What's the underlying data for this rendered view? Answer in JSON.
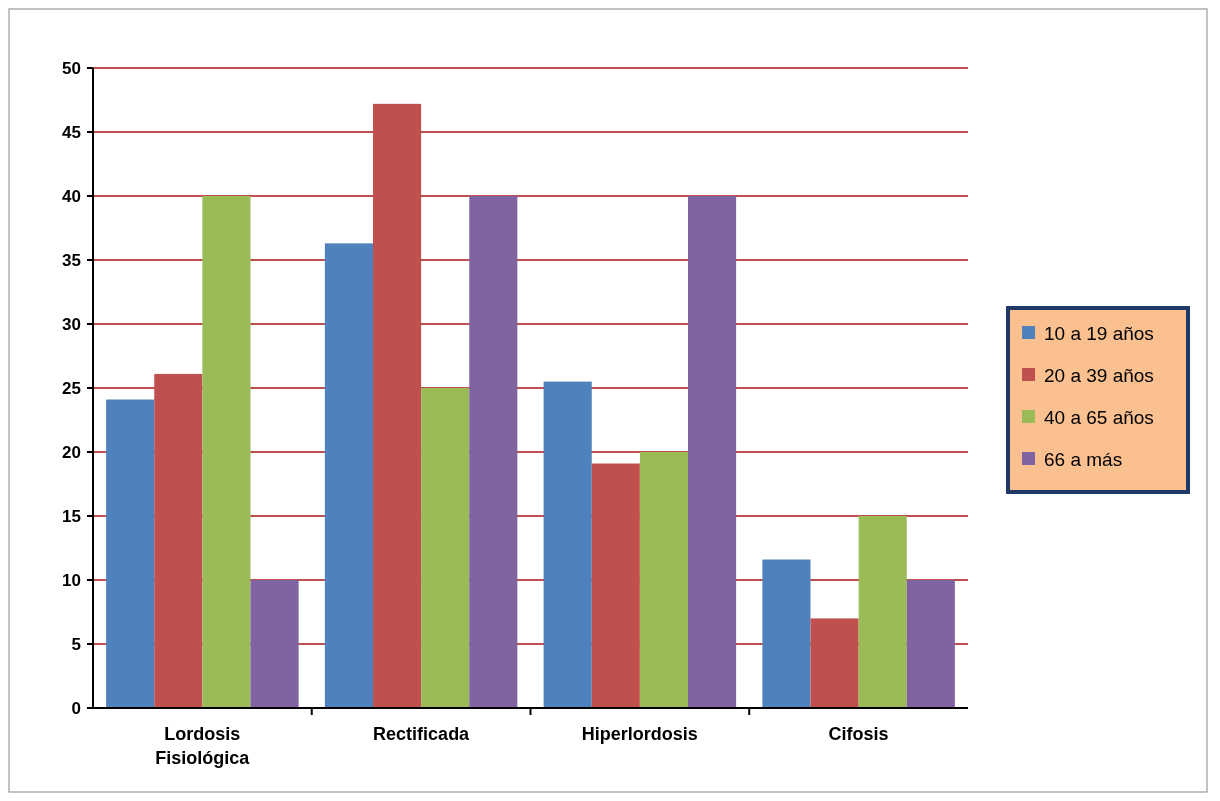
{
  "chart_data": {
    "type": "bar",
    "categories": [
      "Lordosis Fisiológica",
      "Rectificada",
      "Hiperlordosis",
      "Cifosis"
    ],
    "series": [
      {
        "name": "10 a 19 años",
        "color": "#4f81bd",
        "values": [
          24.1,
          36.3,
          25.5,
          11.6
        ]
      },
      {
        "name": "20 a 39 años",
        "color": "#c0504d",
        "values": [
          26.1,
          47.2,
          19.1,
          7
        ]
      },
      {
        "name": "40 a 65 años",
        "color": "#9bbb59",
        "values": [
          40,
          25,
          20,
          15
        ]
      },
      {
        "name": "66 a más",
        "color": "#8064a2",
        "values": [
          10,
          40,
          40,
          10
        ]
      }
    ],
    "ylim": [
      0,
      50
    ],
    "yticks": [
      0,
      5,
      10,
      15,
      20,
      25,
      30,
      35,
      40,
      45,
      50
    ],
    "grid": "y",
    "legend": "right"
  }
}
